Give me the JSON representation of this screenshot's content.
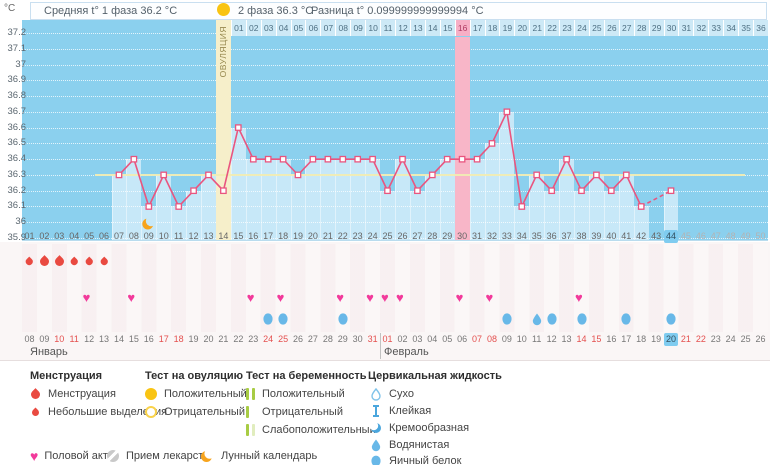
{
  "header": {
    "unit_label": "°C",
    "avg_phase1": "Средняя t° 1 фаза 36.2 °C",
    "phase2": "2 фаза 36.3 °C",
    "difference": "Разница t° 0.099999999999994 °C"
  },
  "ovulation": {
    "label": "ОВУЛЯЦИЯ",
    "cycle_day": 14,
    "test_positive_day": 14
  },
  "highlight": {
    "pink_band_cycle_day": 30,
    "pink_band_dpo": "16",
    "current_cycle_day": 44
  },
  "chart_data": {
    "type": "line",
    "title": "График базальной температуры",
    "ylabel": "°C",
    "ylim": [
      35.9,
      37.2
    ],
    "y_ticks": [
      "37.2",
      "37.1",
      "37",
      "36.9",
      "36.8",
      "36.7",
      "36.6",
      "36.5",
      "36.4",
      "36.3",
      "36.2",
      "36.1",
      "36",
      "35.9"
    ],
    "coverline": 36.3,
    "x_cycle_days_total": 50,
    "measured_days": [
      7,
      8,
      9,
      10,
      11,
      12,
      13,
      14,
      15,
      16,
      17,
      18,
      19,
      20,
      21,
      22,
      23,
      24,
      25,
      26,
      27,
      28,
      29,
      30,
      31,
      32,
      33,
      34,
      35,
      36,
      37,
      38,
      39,
      40,
      41,
      42,
      44
    ],
    "temps_by_day": {
      "7": 36.3,
      "8": 36.4,
      "9": 36.1,
      "10": 36.3,
      "11": 36.1,
      "12": 36.2,
      "13": 36.3,
      "14": 36.2,
      "15": 36.6,
      "16": 36.4,
      "17": 36.4,
      "18": 36.4,
      "19": 36.3,
      "20": 36.4,
      "21": 36.4,
      "22": 36.4,
      "23": 36.4,
      "24": 36.4,
      "25": 36.2,
      "26": 36.4,
      "27": 36.2,
      "28": 36.3,
      "29": 36.4,
      "30": 36.4,
      "31": 36.4,
      "32": 36.5,
      "33": 36.7,
      "34": 36.1,
      "35": 36.3,
      "36": 36.2,
      "37": 36.4,
      "38": 36.2,
      "39": 36.3,
      "40": 36.2,
      "41": 36.3,
      "42": 36.1,
      "44": 36.2
    },
    "missing_days": [
      43
    ],
    "dashed_segment_days": [
      42,
      44
    ],
    "avg_phase1": 36.2,
    "avg_phase2": 36.3,
    "difference": 0.099999999999994,
    "legend_position": "bottom",
    "grid": true
  },
  "dpo_row": {
    "labels": [
      "01",
      "02",
      "03",
      "04",
      "05",
      "06",
      "07",
      "08",
      "09",
      "10",
      "11",
      "12",
      "13",
      "14",
      "15",
      "16",
      "17",
      "18",
      "19",
      "20",
      "21",
      "22",
      "23",
      "24",
      "25",
      "26",
      "27",
      "28",
      "29",
      "30",
      "31",
      "32",
      "33",
      "34",
      "35",
      "36"
    ],
    "pink_label": "16",
    "start_cycle_day": 15
  },
  "cycle_days_row": {
    "labels": [
      "01",
      "02",
      "03",
      "04",
      "05",
      "06",
      "07",
      "08",
      "09",
      "10",
      "11",
      "12",
      "13",
      "14",
      "15",
      "16",
      "17",
      "18",
      "19",
      "20",
      "21",
      "22",
      "23",
      "24",
      "25",
      "26",
      "27",
      "28",
      "29",
      "30",
      "31",
      "32",
      "33",
      "34",
      "35",
      "36",
      "37",
      "38",
      "39",
      "40",
      "41",
      "42",
      "43",
      "44",
      "45",
      "46",
      "47",
      "48",
      "49",
      "50"
    ],
    "current": 44,
    "future_from": 45
  },
  "dates_row": {
    "months": [
      {
        "name": "Январь",
        "first_cycle_day": 1,
        "dates": [
          "08",
          "09",
          "10",
          "11",
          "12",
          "13",
          "14",
          "15",
          "16",
          "17",
          "18",
          "19",
          "20",
          "21",
          "22",
          "23",
          "24",
          "25",
          "26",
          "27",
          "28",
          "29",
          "30",
          "31"
        ],
        "red_dates": [
          "10",
          "11",
          "17",
          "18",
          "24",
          "25",
          "31"
        ]
      },
      {
        "name": "Февраль",
        "first_cycle_day": 25,
        "dates": [
          "01",
          "02",
          "03",
          "04",
          "05",
          "06",
          "07",
          "08",
          "09",
          "10",
          "11",
          "12",
          "13",
          "14",
          "15",
          "16",
          "17",
          "18",
          "19",
          "20",
          "21",
          "22",
          "23",
          "24",
          "25",
          "26"
        ],
        "red_dates": [
          "01",
          "07",
          "08",
          "14",
          "15",
          "21",
          "22"
        ]
      }
    ],
    "current_date": "20"
  },
  "events": {
    "menstruation": [
      {
        "day": 1,
        "type": "spotting"
      },
      {
        "day": 2,
        "type": "full"
      },
      {
        "day": 3,
        "type": "full"
      },
      {
        "day": 4,
        "type": "spotting"
      },
      {
        "day": 5,
        "type": "spotting"
      },
      {
        "day": 6,
        "type": "spotting"
      }
    ],
    "intercourse_days": [
      5,
      8,
      16,
      18,
      22,
      24,
      25,
      26,
      30,
      32,
      38
    ],
    "egg_white_days": [
      17,
      18,
      22,
      33,
      36,
      38,
      41,
      44
    ],
    "watery_days": [
      35
    ],
    "lunar_day": 9
  },
  "legend": {
    "menstruation": {
      "title": "Менструация",
      "items": [
        {
          "icon": "drop-large-icon",
          "label": "Менструация"
        },
        {
          "icon": "drop-small-icon",
          "label": "Небольшие выделения"
        }
      ]
    },
    "ovulation_test": {
      "title": "Тест на овуляцию",
      "items": [
        {
          "icon": "yellow-circle-filled-icon",
          "label": "Положительный"
        },
        {
          "icon": "yellow-circle-outline-icon",
          "label": "Отрицательный"
        }
      ]
    },
    "pregnancy_test": {
      "title": "Тест на беременность",
      "items": [
        {
          "icon": "two-green-bars-icon",
          "label": "Положительный"
        },
        {
          "icon": "one-green-bar-icon",
          "label": "Отрицательный"
        },
        {
          "icon": "green-bar-faint-icon",
          "label": "Слабоположительный"
        }
      ]
    },
    "cervical_fluid": {
      "title": "Цервикальная жидкость",
      "items": [
        {
          "icon": "droplet-outline-icon",
          "label": "Сухо"
        },
        {
          "icon": "ibeam-icon",
          "label": "Клейкая"
        },
        {
          "icon": "crescent-icon",
          "label": "Кремообразная"
        },
        {
          "icon": "teardrop-icon",
          "label": "Водянистая"
        },
        {
          "icon": "oval-icon",
          "label": "Яичный белок"
        }
      ]
    },
    "extra_items": [
      {
        "icon": "heart-icon",
        "label": "Половой акт"
      },
      {
        "icon": "pill-icon",
        "label": "Прием лекарств"
      },
      {
        "icon": "moon-icon",
        "label": "Лунный календарь"
      }
    ]
  },
  "colors": {
    "plot_bg": "#8bd0ee",
    "bar": "#c7e8f8",
    "line": "#e9557f",
    "coverline": "#f0ecb4",
    "ovulation_band": "#f6efca",
    "pink_band": "#f8b6c8",
    "highlight_blue": "#7fccf0",
    "menstruation": "#e94a41",
    "intercourse": "#f23a9b",
    "fluid": "#68b8e8",
    "moon": "#f7a41d",
    "test_yellow": "#f9c413",
    "test_green": "#a8cc44",
    "weekend_red": "#e4504f"
  }
}
